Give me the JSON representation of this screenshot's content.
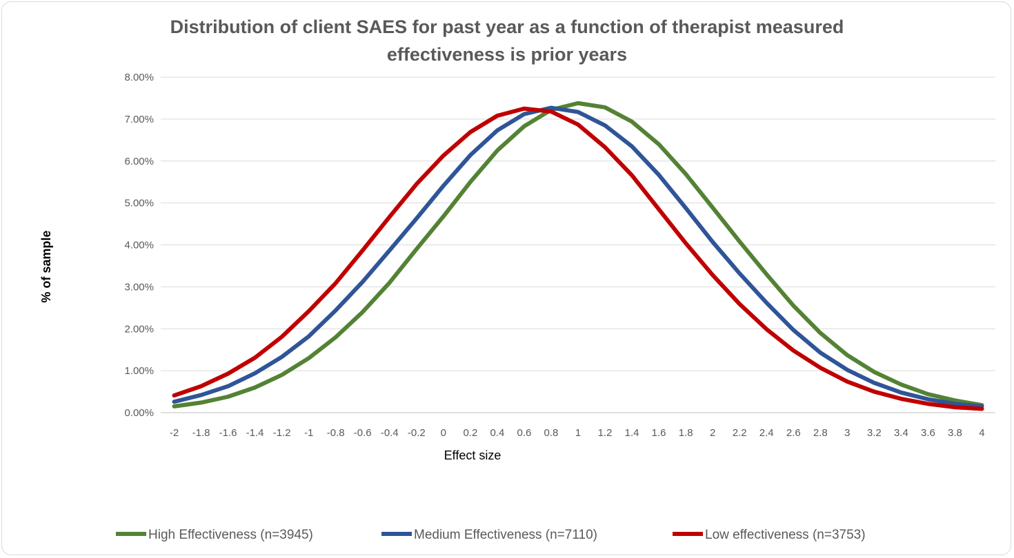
{
  "chart_data": {
    "type": "line",
    "title": "Distribution of client SAES for past year as a function of therapist measured effectiveness is prior years",
    "title_lines": [
      "Distribution of client SAES for past year as a function of therapist measured",
      "effectiveness is prior years"
    ],
    "xlabel": "Effect size",
    "ylabel": "% of sample",
    "ylim": [
      0,
      0.08
    ],
    "y_ticks": [
      0,
      0.01,
      0.02,
      0.03,
      0.04,
      0.05,
      0.06,
      0.07,
      0.08
    ],
    "y_tick_labels": [
      "0.00%",
      "1.00%",
      "2.00%",
      "3.00%",
      "4.00%",
      "5.00%",
      "6.00%",
      "7.00%",
      "8.00%"
    ],
    "categories": [
      "-2",
      "-1.8",
      "-1.6",
      "-1.4",
      "-1.2",
      "-1",
      "-0.8",
      "-0.6",
      "-0.4",
      "-0.2",
      "0",
      "0.2",
      "0.4",
      "0.6",
      "0.8",
      "1",
      "1.2",
      "1.4",
      "1.6",
      "1.8",
      "2",
      "2.2",
      "2.4",
      "2.6",
      "2.8",
      "3",
      "3.2",
      "3.4",
      "3.6",
      "3.8",
      "4"
    ],
    "grid": true,
    "legend_position": "bottom",
    "series": [
      {
        "name": "High Effectiveness (n=3945)",
        "color": "#548235",
        "values": [
          0.0015,
          0.0024,
          0.0038,
          0.006,
          0.009,
          0.013,
          0.018,
          0.024,
          0.031,
          0.039,
          0.0468,
          0.055,
          0.0625,
          0.0683,
          0.0722,
          0.0738,
          0.0728,
          0.0694,
          0.064,
          0.0569,
          0.0489,
          0.0408,
          0.033,
          0.0255,
          0.019,
          0.0137,
          0.0097,
          0.0067,
          0.0044,
          0.0029,
          0.0018
        ]
      },
      {
        "name": "Medium Effectiveness (n=7110)",
        "color": "#2f5597",
        "values": [
          0.0026,
          0.0042,
          0.0063,
          0.0094,
          0.0133,
          0.0182,
          0.0244,
          0.0312,
          0.0387,
          0.0463,
          0.0541,
          0.0614,
          0.0673,
          0.0712,
          0.0727,
          0.0717,
          0.0685,
          0.0635,
          0.0567,
          0.0488,
          0.0407,
          0.0332,
          0.0262,
          0.0197,
          0.0143,
          0.0102,
          0.0071,
          0.0048,
          0.0032,
          0.0021,
          0.0015
        ]
      },
      {
        "name": "Low effectiveness  (n=3753)",
        "color": "#c00000",
        "values": [
          0.0041,
          0.0063,
          0.0093,
          0.0131,
          0.0181,
          0.0242,
          0.0309,
          0.0387,
          0.0467,
          0.0545,
          0.0613,
          0.0669,
          0.0708,
          0.0725,
          0.0718,
          0.0687,
          0.0633,
          0.0566,
          0.0485,
          0.0404,
          0.0328,
          0.0259,
          0.0199,
          0.0148,
          0.0107,
          0.0074,
          0.005,
          0.0033,
          0.0021,
          0.0013,
          0.0009
        ]
      }
    ]
  }
}
